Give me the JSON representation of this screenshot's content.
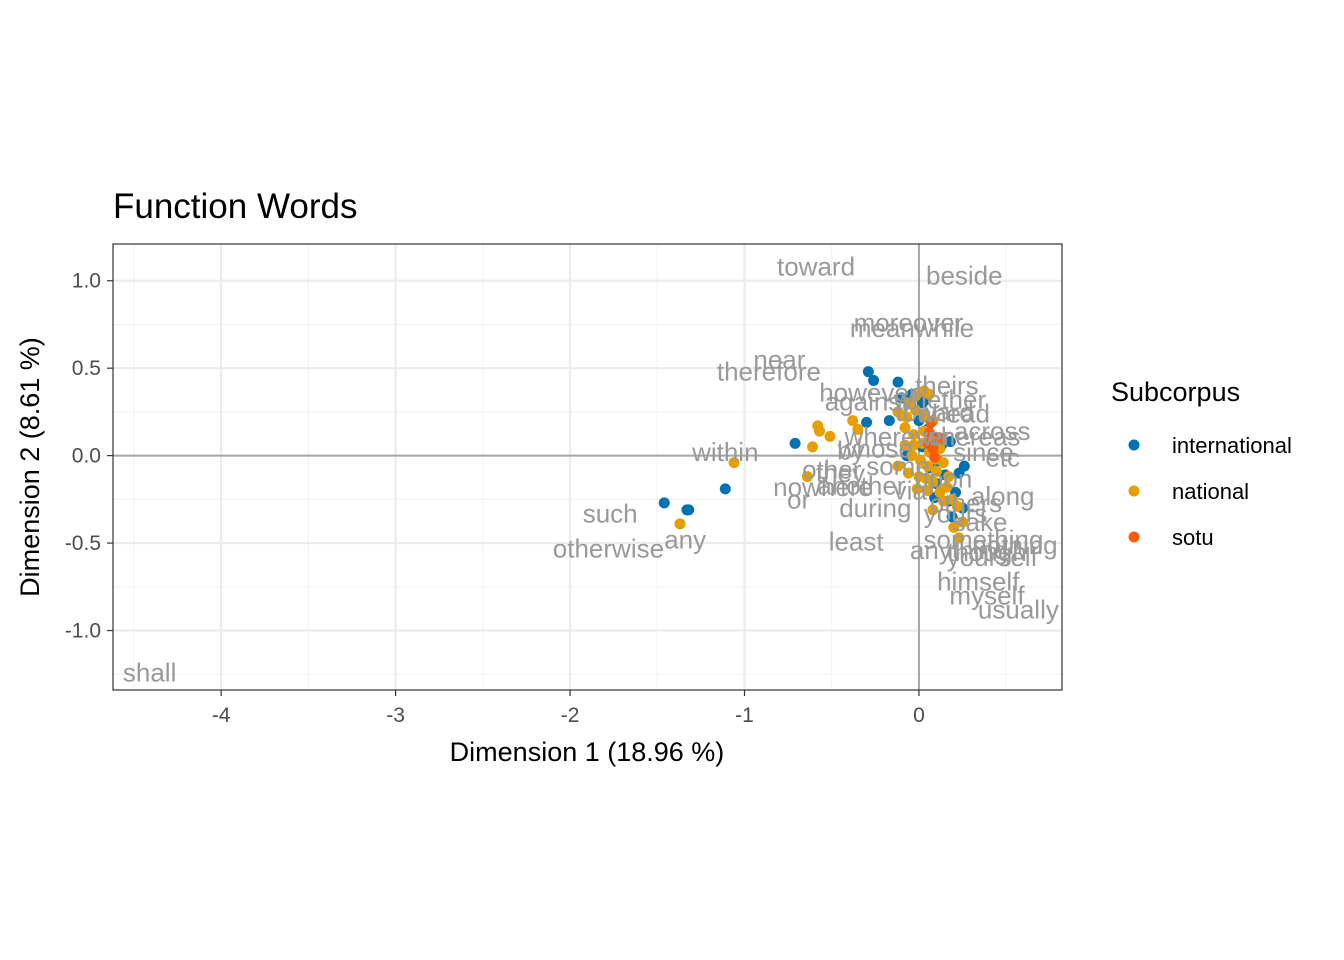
{
  "chart_data": {
    "type": "scatter",
    "title": "Function Words",
    "xlabel": "Dimension 1 (18.96 %)",
    "ylabel": "Dimension 2 (8.61 %)",
    "xlim": [
      -4.62,
      0.82
    ],
    "ylim": [
      -1.34,
      1.21
    ],
    "x_ticks": [
      -4,
      -3,
      -2,
      -1,
      0
    ],
    "x_tick_labels": [
      "-4",
      "-3",
      "-2",
      "-1",
      "0"
    ],
    "y_ticks": [
      1.0,
      0.5,
      0.0,
      -0.5,
      -1.0
    ],
    "y_tick_labels": [
      "1.0",
      "0.5",
      "0.0",
      "-0.5",
      "-1.0"
    ],
    "grid": true,
    "reference_lines": {
      "x": 0,
      "y": 0
    },
    "legend": {
      "title": "Subcorpus",
      "position": "right",
      "entries": [
        "international",
        "national",
        "sotu"
      ]
    },
    "series": [
      {
        "name": "international",
        "color": "#0072B2",
        "points": [
          [
            -1.46,
            -0.27
          ],
          [
            -1.33,
            -0.31
          ],
          [
            -1.32,
            -0.31
          ],
          [
            -1.11,
            -0.19
          ],
          [
            -0.71,
            0.07
          ],
          [
            -0.29,
            0.48
          ],
          [
            -0.26,
            0.43
          ],
          [
            -0.12,
            0.42
          ],
          [
            -0.3,
            0.19
          ],
          [
            -0.17,
            0.2
          ],
          [
            -0.1,
            0.33
          ],
          [
            -0.04,
            0.35
          ],
          [
            0.02,
            0.3
          ],
          [
            0.04,
            0.32
          ],
          [
            0.0,
            0.2
          ],
          [
            0.1,
            0.1
          ],
          [
            0.13,
            0.06
          ],
          [
            0.02,
            0.05
          ],
          [
            -0.07,
            0.0
          ],
          [
            0.11,
            -0.03
          ],
          [
            0.06,
            -0.07
          ],
          [
            0.15,
            -0.11
          ],
          [
            0.1,
            -0.16
          ],
          [
            0.21,
            -0.21
          ],
          [
            0.09,
            -0.24
          ],
          [
            0.17,
            -0.26
          ],
          [
            0.25,
            -0.3
          ],
          [
            0.19,
            -0.35
          ],
          [
            0.23,
            -0.1
          ],
          [
            0.05,
            0.15
          ],
          [
            0.18,
            0.08
          ],
          [
            0.26,
            -0.06
          ]
        ]
      },
      {
        "name": "national",
        "color": "#E69F00",
        "points": [
          [
            -1.06,
            -0.04
          ],
          [
            -1.37,
            -0.39
          ],
          [
            -0.64,
            -0.12
          ],
          [
            -0.61,
            0.05
          ],
          [
            -0.58,
            0.17
          ],
          [
            -0.57,
            0.14
          ],
          [
            -0.51,
            0.11
          ],
          [
            -0.38,
            0.2
          ],
          [
            -0.35,
            0.15
          ],
          [
            -0.1,
            0.23
          ],
          [
            -0.05,
            0.3
          ],
          [
            -0.02,
            0.34
          ],
          [
            0.03,
            0.37
          ],
          [
            0.06,
            0.35
          ],
          [
            -0.07,
            0.22
          ],
          [
            -0.12,
            0.25
          ],
          [
            -0.08,
            0.16
          ],
          [
            -0.03,
            0.12
          ],
          [
            0.03,
            0.14
          ],
          [
            0.08,
            0.2
          ],
          [
            -0.08,
            0.06
          ],
          [
            -0.04,
            0.0
          ],
          [
            0.01,
            -0.03
          ],
          [
            0.05,
            -0.06
          ],
          [
            -0.06,
            -0.1
          ],
          [
            -0.12,
            -0.06
          ],
          [
            0.04,
            -0.13
          ],
          [
            0.08,
            -0.15
          ],
          [
            0.12,
            -0.21
          ],
          [
            0.16,
            -0.18
          ],
          [
            0.19,
            -0.25
          ],
          [
            0.22,
            -0.29
          ],
          [
            0.08,
            -0.31
          ],
          [
            0.25,
            -0.38
          ],
          [
            0.23,
            -0.47
          ],
          [
            0.2,
            -0.41
          ],
          [
            -0.01,
            -0.19
          ],
          [
            0.05,
            -0.2
          ],
          [
            0.14,
            -0.26
          ],
          [
            0.02,
            0.07
          ],
          [
            0.06,
            0.02
          ],
          [
            0.1,
            -0.02
          ],
          [
            0.12,
            0.04
          ],
          [
            -0.03,
            0.06
          ],
          [
            0.0,
            -0.12
          ],
          [
            0.1,
            -0.09
          ],
          [
            0.14,
            -0.04
          ],
          [
            -0.02,
            0.26
          ],
          [
            0.03,
            0.23
          ],
          [
            0.17,
            -0.12
          ]
        ]
      },
      {
        "name": "sotu",
        "color": "#FF5A0A",
        "points": [
          [
            0.07,
            0.19
          ],
          [
            0.06,
            0.13
          ],
          [
            0.1,
            0.09
          ],
          [
            0.08,
            0.04
          ],
          [
            0.09,
            -0.01
          ],
          [
            0.12,
            0.1
          ],
          [
            0.05,
            0.07
          ]
        ]
      }
    ],
    "word_labels": [
      {
        "text": "toward",
        "x": -0.59,
        "y": 1.08
      },
      {
        "text": "beside",
        "x": 0.26,
        "y": 1.03
      },
      {
        "text": "moreover",
        "x": -0.06,
        "y": 0.76
      },
      {
        "text": "meanwhile",
        "x": -0.04,
        "y": 0.73
      },
      {
        "text": "near",
        "x": -0.8,
        "y": 0.55
      },
      {
        "text": "therefore",
        "x": -0.86,
        "y": 0.48
      },
      {
        "text": "theirs",
        "x": 0.16,
        "y": 0.4
      },
      {
        "text": "however",
        "x": -0.29,
        "y": 0.36
      },
      {
        "text": "against",
        "x": -0.3,
        "y": 0.31
      },
      {
        "text": "whether",
        "x": 0.12,
        "y": 0.32
      },
      {
        "text": "toward",
        "x": 0.09,
        "y": 0.25
      },
      {
        "text": "ahead",
        "x": 0.2,
        "y": 0.24
      },
      {
        "text": "across",
        "x": 0.42,
        "y": 0.14
      },
      {
        "text": "whereas",
        "x": 0.3,
        "y": 0.11
      },
      {
        "text": "wherever",
        "x": -0.12,
        "y": 0.11
      },
      {
        "text": "within",
        "x": -1.11,
        "y": 0.02
      },
      {
        "text": "by",
        "x": -0.39,
        "y": 0.03
      },
      {
        "text": "whose",
        "x": -0.25,
        "y": 0.04
      },
      {
        "text": "since",
        "x": 0.37,
        "y": 0.02
      },
      {
        "text": "etc",
        "x": 0.48,
        "y": -0.01
      },
      {
        "text": "other",
        "x": -0.5,
        "y": -0.08
      },
      {
        "text": "they",
        "x": -0.45,
        "y": -0.1
      },
      {
        "text": "some",
        "x": -0.12,
        "y": -0.06
      },
      {
        "text": "upon",
        "x": 0.14,
        "y": -0.13
      },
      {
        "text": "nowhere",
        "x": -0.55,
        "y": -0.18
      },
      {
        "text": "another",
        "x": -0.33,
        "y": -0.17
      },
      {
        "text": "via",
        "x": -0.05,
        "y": -0.2
      },
      {
        "text": "or",
        "x": -0.69,
        "y": -0.25
      },
      {
        "text": "during",
        "x": -0.25,
        "y": -0.3
      },
      {
        "text": "along",
        "x": 0.48,
        "y": -0.23
      },
      {
        "text": "others",
        "x": 0.27,
        "y": -0.27
      },
      {
        "text": "such",
        "x": -1.77,
        "y": -0.33
      },
      {
        "text": "yours",
        "x": 0.21,
        "y": -0.33
      },
      {
        "text": "sake",
        "x": 0.35,
        "y": -0.38
      },
      {
        "text": "any",
        "x": -1.34,
        "y": -0.48
      },
      {
        "text": "least",
        "x": -0.36,
        "y": -0.49
      },
      {
        "text": "something",
        "x": 0.37,
        "y": -0.48
      },
      {
        "text": "nothing",
        "x": 0.55,
        "y": -0.51
      },
      {
        "text": "anything",
        "x": 0.23,
        "y": -0.54
      },
      {
        "text": "though",
        "x": 0.39,
        "y": -0.55
      },
      {
        "text": "yourself",
        "x": 0.42,
        "y": -0.58
      },
      {
        "text": "otherwise",
        "x": -1.78,
        "y": -0.53
      },
      {
        "text": "himself",
        "x": 0.34,
        "y": -0.72
      },
      {
        "text": "myself",
        "x": 0.39,
        "y": -0.8
      },
      {
        "text": "usually",
        "x": 0.57,
        "y": -0.88
      },
      {
        "text": "shall",
        "x": -4.41,
        "y": -1.24
      }
    ]
  }
}
